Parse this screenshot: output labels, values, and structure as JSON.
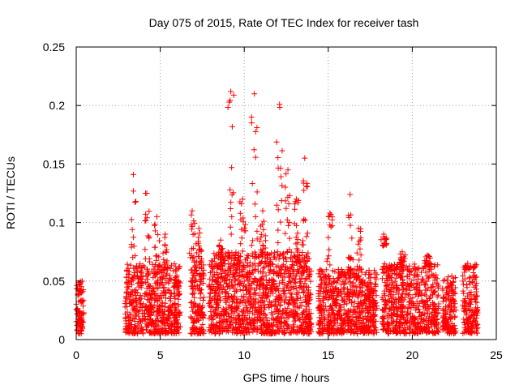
{
  "chart_data": {
    "type": "scatter",
    "title": "Day 075 of 2015, Rate Of TEC Index for receiver tash",
    "xlabel": "GPS time / hours",
    "ylabel": "ROTI / TECUs",
    "xlim": [
      0,
      25
    ],
    "ylim": [
      0,
      0.25
    ],
    "xticks": [
      0,
      5,
      10,
      15,
      20,
      25
    ],
    "yticks": [
      0,
      0.05,
      0.1,
      0.15,
      0.2,
      0.25
    ],
    "xtick_labels": [
      "0",
      "5",
      "10",
      "15",
      "20",
      "25"
    ],
    "ytick_labels": [
      "0",
      "0.05",
      "0.1",
      "0.15",
      "0.2",
      "0.25"
    ],
    "grid": true,
    "marker": "+",
    "marker_color": "#ff0000",
    "series": [
      {
        "name": "ROTI",
        "clusters": [
          {
            "x_start": 0.0,
            "x_end": 0.45,
            "y_top": 0.05,
            "count": 90
          },
          {
            "x_start": 2.9,
            "x_end": 6.2,
            "y_top": 0.065,
            "count": 600
          },
          {
            "x_start": 6.8,
            "x_end": 7.6,
            "y_top": 0.07,
            "count": 160
          },
          {
            "x_start": 7.9,
            "x_end": 14.0,
            "y_top": 0.075,
            "count": 1200
          },
          {
            "x_start": 14.4,
            "x_end": 17.9,
            "y_top": 0.06,
            "count": 650
          },
          {
            "x_start": 18.2,
            "x_end": 21.6,
            "y_top": 0.065,
            "count": 600
          },
          {
            "x_start": 21.8,
            "x_end": 22.6,
            "y_top": 0.055,
            "count": 150
          },
          {
            "x_start": 23.0,
            "x_end": 23.9,
            "y_top": 0.065,
            "count": 160
          }
        ],
        "peaks": [
          {
            "x": 3.4,
            "y_top": 0.141,
            "y_bottom": 0.06
          },
          {
            "x": 4.2,
            "y_top": 0.125,
            "y_bottom": 0.06
          },
          {
            "x": 4.8,
            "y_top": 0.105,
            "y_bottom": 0.06
          },
          {
            "x": 5.3,
            "y_top": 0.09,
            "y_bottom": 0.06
          },
          {
            "x": 6.9,
            "y_top": 0.11,
            "y_bottom": 0.07
          },
          {
            "x": 7.3,
            "y_top": 0.095,
            "y_bottom": 0.07
          },
          {
            "x": 8.6,
            "y_top": 0.085,
            "y_bottom": 0.07
          },
          {
            "x": 9.2,
            "y_top": 0.212,
            "y_bottom": 0.08
          },
          {
            "x": 9.9,
            "y_top": 0.12,
            "y_bottom": 0.075
          },
          {
            "x": 10.6,
            "y_top": 0.21,
            "y_bottom": 0.08
          },
          {
            "x": 11.1,
            "y_top": 0.11,
            "y_bottom": 0.075
          },
          {
            "x": 12.1,
            "y_top": 0.201,
            "y_bottom": 0.08
          },
          {
            "x": 12.6,
            "y_top": 0.145,
            "y_bottom": 0.075
          },
          {
            "x": 13.1,
            "y_top": 0.12,
            "y_bottom": 0.075
          },
          {
            "x": 13.6,
            "y_top": 0.155,
            "y_bottom": 0.08
          },
          {
            "x": 15.1,
            "y_top": 0.108,
            "y_bottom": 0.06
          },
          {
            "x": 16.3,
            "y_top": 0.124,
            "y_bottom": 0.06
          },
          {
            "x": 16.8,
            "y_top": 0.095,
            "y_bottom": 0.06
          },
          {
            "x": 18.3,
            "y_top": 0.09,
            "y_bottom": 0.08
          },
          {
            "x": 19.4,
            "y_top": 0.075,
            "y_bottom": 0.065
          },
          {
            "x": 20.9,
            "y_top": 0.072,
            "y_bottom": 0.065
          },
          {
            "x": 23.3,
            "y_top": 0.065,
            "y_bottom": 0.06
          }
        ]
      }
    ]
  }
}
